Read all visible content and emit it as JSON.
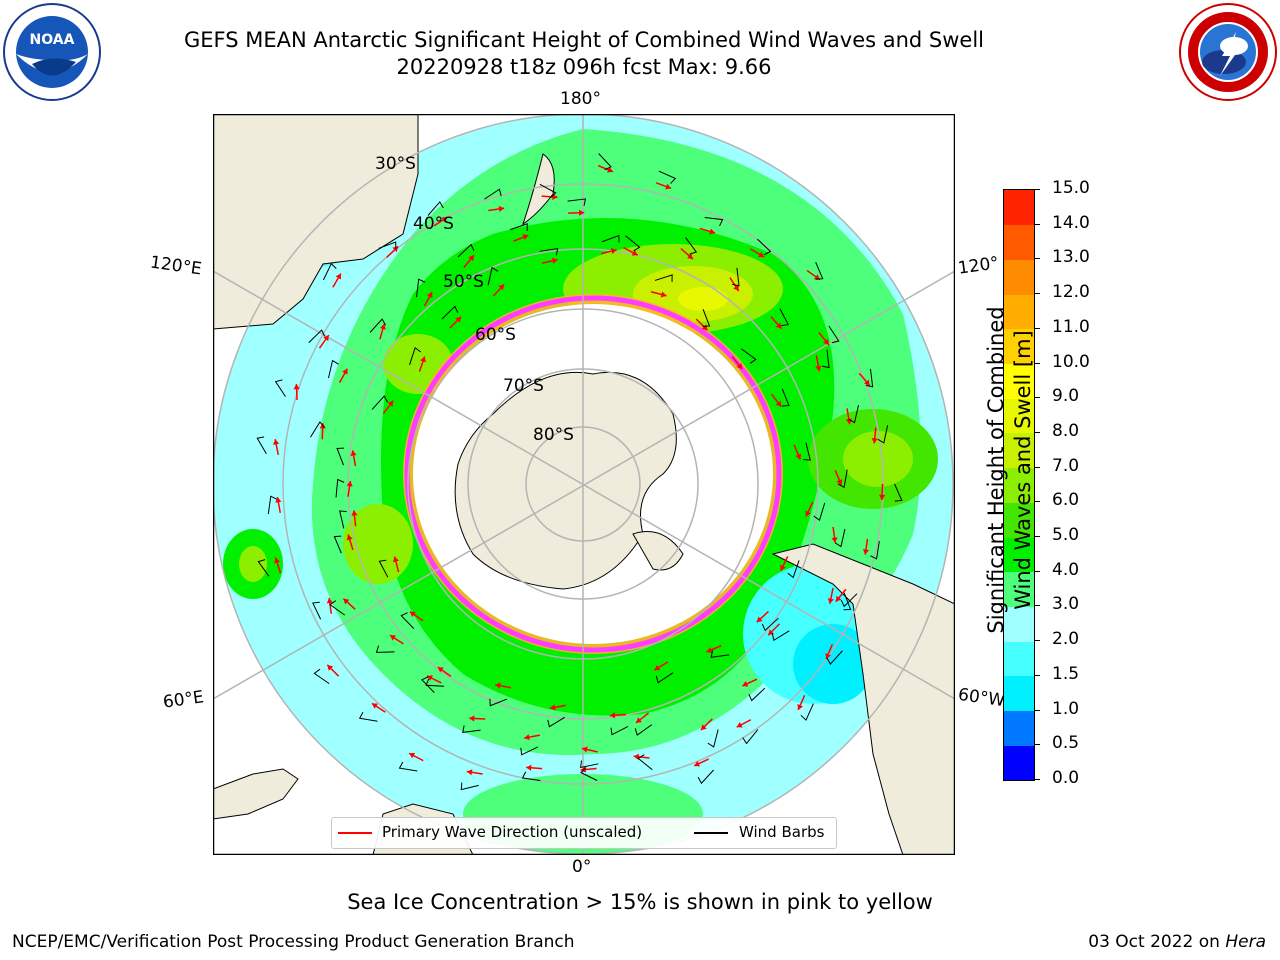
{
  "header": {
    "title_line1": "GEFS MEAN Antarctic Significant Height of Combined Wind Waves and Swell",
    "title_line2": "20220928 t18z 096h fcst   Max: 9.66"
  },
  "logos": {
    "left": {
      "name": "NOAA",
      "text": "NOAA",
      "ring_text": "NATIONAL OCEANIC AND ATMOSPHERIC ADMINISTRATION · U.S. DEPARTMENT OF COMMERCE"
    },
    "right": {
      "name": "National Weather Service",
      "ring_text": "NATIONAL WEATHER SERVICE"
    }
  },
  "map": {
    "projection": "south-polar-stereographic",
    "longitude_labels": {
      "top": "180°",
      "bottom": "0°",
      "left_upper": "120°E",
      "left_lower": "60°E",
      "right_upper": "120°",
      "right_lower": "60°W"
    },
    "latitude_labels": [
      "30°S",
      "40°S",
      "50°S",
      "60°S",
      "70°S",
      "80°S"
    ]
  },
  "legend": {
    "primary_wave": "Primary Wave Direction (unscaled)",
    "wind_barbs": "Wind Barbs"
  },
  "colorbar": {
    "label_line1": "Significant Height of Combined",
    "label_line2": "Wind Waves and Swell [m]",
    "levels": [
      "0.0",
      "0.5",
      "1.0",
      "1.5",
      "2.0",
      "3.0",
      "4.0",
      "5.0",
      "6.0",
      "7.0",
      "8.0",
      "9.0",
      "10.0",
      "11.0",
      "12.0",
      "13.0",
      "14.0",
      "15.0"
    ],
    "colors": [
      "#0000ff",
      "#0078ff",
      "#00f0ff",
      "#46ffff",
      "#a0ffff",
      "#4dff7a",
      "#00f000",
      "#42e600",
      "#8cee00",
      "#c8f000",
      "#e8f800",
      "#ffff00",
      "#ffd000",
      "#ffae00",
      "#ff8c00",
      "#ff5a00",
      "#ff2400"
    ]
  },
  "colors": {
    "land": "#efecdc",
    "ice_edge": "#ff3cff",
    "ice_inner": "#ffb428",
    "wave_arrow": "#ff0000",
    "wind_barb": "#000000",
    "graticule": "#b4b4b4"
  },
  "annotations": {
    "sea_ice_note": "Sea Ice Concentration > 15% is shown in pink to yellow",
    "footer_left": "NCEP/EMC/Verification Post Processing Product Generation Branch",
    "footer_date": "03 Oct 2022 on",
    "footer_host": "Hera"
  }
}
